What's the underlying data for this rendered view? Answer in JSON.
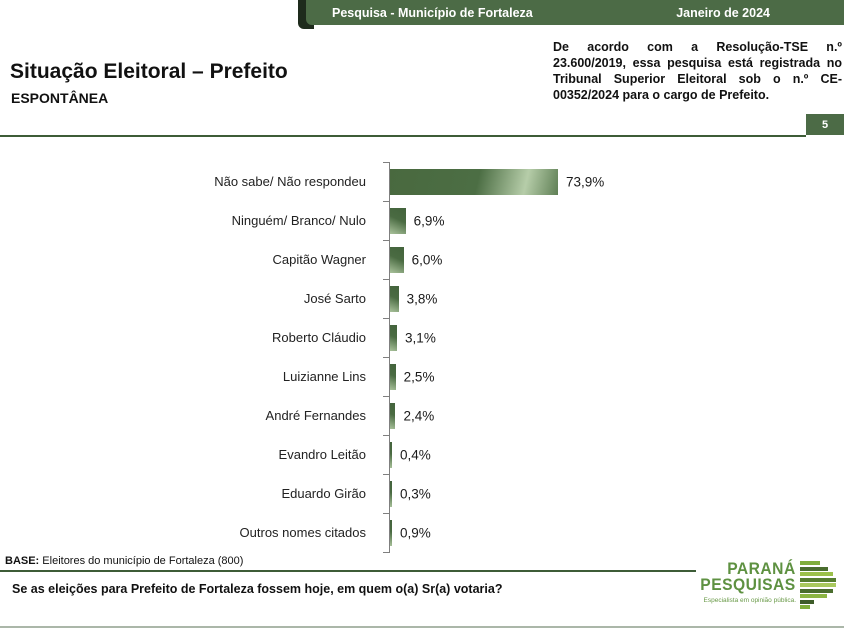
{
  "header": {
    "left": "Pesquisa - Município de Fortaleza",
    "right": "Janeiro de 2024"
  },
  "title": {
    "main": "Situação Eleitoral – Prefeito",
    "sub": "ESPONTÂNEA"
  },
  "registration_note": "De acordo com a Resolução-TSE n.º 23.600/2019, essa pesquisa está registrada no Tribunal Superior Eleitoral sob o n.º CE-00352/2024 para o cargo de Prefeito.",
  "page_number": "5",
  "chart_data": {
    "type": "bar",
    "orientation": "horizontal",
    "categories": [
      "Não sabe/ Não respondeu",
      "Ninguém/ Branco/ Nulo",
      "Capitão Wagner",
      "José Sarto",
      "Roberto Cláudio",
      "Luizianne Lins",
      "André Fernandes",
      "Evandro Leitão",
      "Eduardo Girão",
      "Outros nomes citados"
    ],
    "values": [
      73.9,
      6.9,
      6.0,
      3.8,
      3.1,
      2.5,
      2.4,
      0.4,
      0.3,
      0.9
    ],
    "value_labels": [
      "73,9%",
      "6,9%",
      "6,0%",
      "3,8%",
      "3,1%",
      "2,5%",
      "2,4%",
      "0,4%",
      "0,3%",
      "0,9%"
    ],
    "xlim": [
      0,
      100
    ],
    "grid": false,
    "legend": false,
    "bar_color_dark": "#4a6a42",
    "bar_color_light": "#b5cba8"
  },
  "footer": {
    "base_label": "BASE:",
    "base_text": " Eleitores do município de Fortaleza (800)",
    "question": "Se as eleições para Prefeito de Fortaleza fossem hoje, em quem o(a) Sr(a) votaria?"
  },
  "logo": {
    "line1": "PARANÁ",
    "line2": "PESQUISAS",
    "tagline": "Especialista em opinião pública."
  },
  "colors": {
    "accent_green": "#4c6b46",
    "line_green": "#3d5c37",
    "logo_green": "#5e9141"
  }
}
